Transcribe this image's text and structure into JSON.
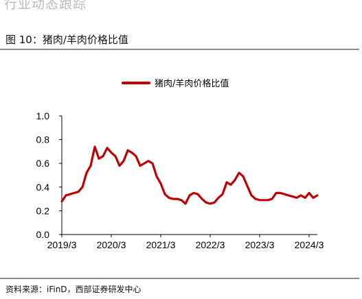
{
  "header": {
    "cutoff_text": "行业动态跟踪",
    "figure_title": "图 10：猪肉/羊肉价格比值"
  },
  "footer": {
    "source": "资料来源：iFinD，西部证券研发中心"
  },
  "chart_data": {
    "type": "line",
    "title": "",
    "xlabel": "",
    "ylabel": "",
    "ylim": [
      0.0,
      1.0
    ],
    "yticks": [
      "0.0",
      "0.2",
      "0.4",
      "0.6",
      "0.8",
      "1.0"
    ],
    "xticks": [
      "2019/3",
      "2020/3",
      "2021/3",
      "2022/3",
      "2023/3",
      "2024/3"
    ],
    "xrange": [
      "2019/3",
      "2024/5"
    ],
    "legend_position": "top-center",
    "grid": false,
    "series": [
      {
        "name": "猪肉/羊肉价格比值",
        "color": "#c00000",
        "points": [
          [
            "2019/3",
            0.28
          ],
          [
            "2019/4",
            0.33
          ],
          [
            "2019/5",
            0.34
          ],
          [
            "2019/6",
            0.35
          ],
          [
            "2019/7",
            0.36
          ],
          [
            "2019/8",
            0.4
          ],
          [
            "2019/9",
            0.52
          ],
          [
            "2019/10",
            0.58
          ],
          [
            "2019/11",
            0.74
          ],
          [
            "2019/12",
            0.64
          ],
          [
            "2020/1",
            0.66
          ],
          [
            "2020/2",
            0.73
          ],
          [
            "2020/3",
            0.69
          ],
          [
            "2020/4",
            0.66
          ],
          [
            "2020/5",
            0.58
          ],
          [
            "2020/6",
            0.62
          ],
          [
            "2020/7",
            0.71
          ],
          [
            "2020/8",
            0.69
          ],
          [
            "2020/9",
            0.66
          ],
          [
            "2020/10",
            0.58
          ],
          [
            "2020/11",
            0.6
          ],
          [
            "2020/12",
            0.62
          ],
          [
            "2021/1",
            0.6
          ],
          [
            "2021/2",
            0.49
          ],
          [
            "2021/3",
            0.43
          ],
          [
            "2021/4",
            0.34
          ],
          [
            "2021/5",
            0.31
          ],
          [
            "2021/6",
            0.3
          ],
          [
            "2021/7",
            0.3
          ],
          [
            "2021/8",
            0.29
          ],
          [
            "2021/9",
            0.26
          ],
          [
            "2021/10",
            0.33
          ],
          [
            "2021/11",
            0.35
          ],
          [
            "2021/12",
            0.34
          ],
          [
            "2022/1",
            0.3
          ],
          [
            "2022/2",
            0.27
          ],
          [
            "2022/3",
            0.26
          ],
          [
            "2022/4",
            0.27
          ],
          [
            "2022/5",
            0.31
          ],
          [
            "2022/6",
            0.34
          ],
          [
            "2022/7",
            0.44
          ],
          [
            "2022/8",
            0.42
          ],
          [
            "2022/9",
            0.46
          ],
          [
            "2022/10",
            0.52
          ],
          [
            "2022/11",
            0.49
          ],
          [
            "2022/12",
            0.41
          ],
          [
            "2023/1",
            0.33
          ],
          [
            "2023/2",
            0.3
          ],
          [
            "2023/3",
            0.29
          ],
          [
            "2023/4",
            0.29
          ],
          [
            "2023/5",
            0.29
          ],
          [
            "2023/6",
            0.3
          ],
          [
            "2023/7",
            0.35
          ],
          [
            "2023/8",
            0.35
          ],
          [
            "2023/9",
            0.34
          ],
          [
            "2023/10",
            0.33
          ],
          [
            "2023/11",
            0.32
          ],
          [
            "2023/12",
            0.31
          ],
          [
            "2024/1",
            0.33
          ],
          [
            "2024/2",
            0.31
          ],
          [
            "2024/3",
            0.35
          ],
          [
            "2024/4",
            0.31
          ],
          [
            "2024/5",
            0.33
          ]
        ]
      }
    ]
  }
}
